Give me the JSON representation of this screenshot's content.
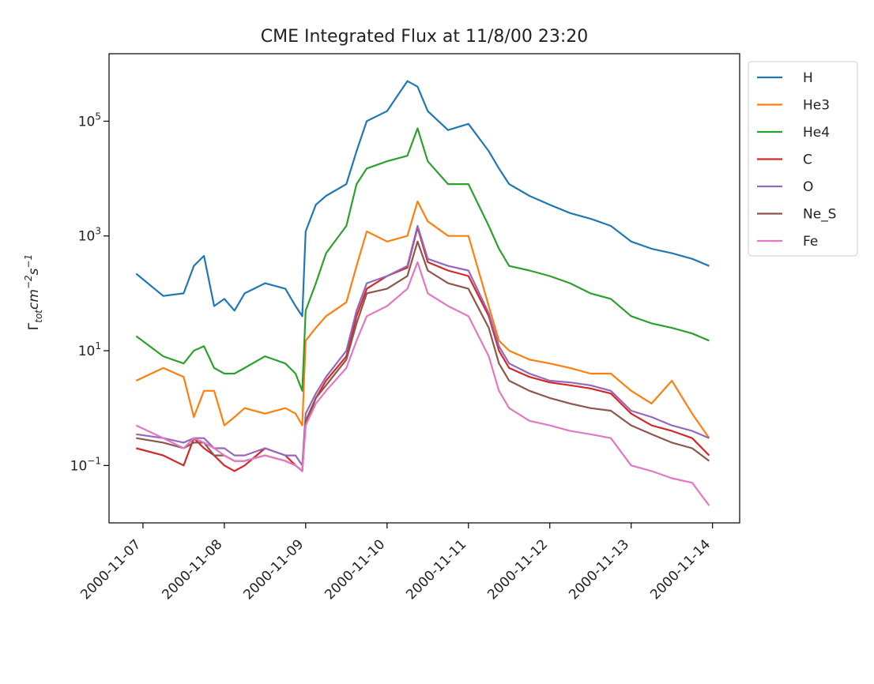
{
  "chart_data": {
    "type": "line",
    "title": "CME Integrated Flux at 11/8/00 23:20",
    "xlabel": "",
    "ylabel": "Γtot cm−2 s−1",
    "yscale": "log",
    "ylim": [
      0.01,
      1500000
    ],
    "xlim": [
      "2000-11-06 14:00",
      "2000-11-14 08:00"
    ],
    "x_ticks": [
      "2000-11-07",
      "2000-11-08",
      "2000-11-09",
      "2000-11-10",
      "2000-11-11",
      "2000-11-12",
      "2000-11-13",
      "2000-11-14"
    ],
    "y_ticks": [
      {
        "value": 0.1,
        "base": "10",
        "exp": "−1"
      },
      {
        "value": 10,
        "base": "10",
        "exp": "1"
      },
      {
        "value": 1000,
        "base": "10",
        "exp": "3"
      },
      {
        "value": 100000,
        "base": "10",
        "exp": "5"
      }
    ],
    "grid": false,
    "legend_position": "outside-top-right",
    "x": [
      "2000-11-06 22:00",
      "2000-11-07 06:00",
      "2000-11-07 12:00",
      "2000-11-07 15:00",
      "2000-11-07 18:00",
      "2000-11-07 21:00",
      "2000-11-08 00:00",
      "2000-11-08 03:00",
      "2000-11-08 06:00",
      "2000-11-08 12:00",
      "2000-11-08 18:00",
      "2000-11-08 21:00",
      "2000-11-08 23:00",
      "2000-11-09 00:00",
      "2000-11-09 03:00",
      "2000-11-09 06:00",
      "2000-11-09 12:00",
      "2000-11-09 15:00",
      "2000-11-09 18:00",
      "2000-11-10 00:00",
      "2000-11-10 06:00",
      "2000-11-10 09:00",
      "2000-11-10 12:00",
      "2000-11-10 18:00",
      "2000-11-11 00:00",
      "2000-11-11 06:00",
      "2000-11-11 09:00",
      "2000-11-11 12:00",
      "2000-11-11 18:00",
      "2000-11-12 00:00",
      "2000-11-12 06:00",
      "2000-11-12 12:00",
      "2000-11-12 18:00",
      "2000-11-13 00:00",
      "2000-11-13 06:00",
      "2000-11-13 12:00",
      "2000-11-13 18:00",
      "2000-11-13 23:00"
    ],
    "series": [
      {
        "name": "H",
        "color": "#1f77b4",
        "values": [
          220,
          90,
          100,
          300,
          450,
          60,
          80,
          50,
          100,
          150,
          120,
          60,
          40,
          1200,
          3500,
          5000,
          8000,
          30000,
          100000,
          150000,
          500000,
          400000,
          150000,
          70000,
          90000,
          30000,
          15000,
          8000,
          5000,
          3500,
          2500,
          2000,
          1500,
          800,
          600,
          500,
          400,
          300
        ]
      },
      {
        "name": "He3",
        "color": "#ff7f0e",
        "values": [
          3,
          5,
          3.5,
          0.7,
          2,
          2,
          0.5,
          0.7,
          1,
          0.8,
          1,
          0.8,
          0.5,
          15,
          25,
          40,
          70,
          300,
          1200,
          800,
          1000,
          4000,
          1800,
          1000,
          1000,
          60,
          15,
          10,
          7,
          6,
          5,
          4,
          4,
          2,
          1.2,
          3,
          0.8,
          0.3
        ]
      },
      {
        "name": "He4",
        "color": "#2ca02c",
        "values": [
          18,
          8,
          6,
          10,
          12,
          5,
          4,
          4,
          5,
          8,
          6,
          4,
          2,
          50,
          150,
          500,
          1500,
          8000,
          15000,
          20000,
          25000,
          75000,
          20000,
          8000,
          8000,
          1500,
          600,
          300,
          250,
          200,
          150,
          100,
          80,
          40,
          30,
          25,
          20,
          15
        ]
      },
      {
        "name": "C",
        "color": "#d62728",
        "values": [
          0.2,
          0.15,
          0.1,
          0.3,
          0.2,
          0.15,
          0.1,
          0.08,
          0.1,
          0.2,
          0.15,
          0.1,
          0.08,
          0.5,
          1.5,
          3,
          8,
          40,
          120,
          200,
          280,
          1400,
          350,
          250,
          200,
          40,
          10,
          5,
          3.5,
          2.8,
          2.5,
          2.2,
          1.8,
          0.8,
          0.5,
          0.4,
          0.3,
          0.15
        ]
      },
      {
        "name": "O",
        "color": "#9467bd",
        "values": [
          0.35,
          0.3,
          0.25,
          0.3,
          0.3,
          0.2,
          0.2,
          0.15,
          0.15,
          0.2,
          0.15,
          0.15,
          0.1,
          0.8,
          1.8,
          3.5,
          10,
          50,
          150,
          200,
          300,
          1500,
          400,
          300,
          250,
          45,
          12,
          6,
          4,
          3,
          2.8,
          2.5,
          2,
          0.9,
          0.7,
          0.5,
          0.4,
          0.3
        ]
      },
      {
        "name": "Ne_S",
        "color": "#8c564b",
        "values": [
          0.3,
          0.25,
          0.2,
          0.25,
          0.25,
          0.15,
          0.15,
          0.12,
          0.12,
          0.15,
          0.12,
          0.1,
          0.08,
          0.6,
          1.5,
          2.5,
          7,
          30,
          100,
          120,
          200,
          800,
          250,
          150,
          120,
          25,
          6,
          3,
          2,
          1.5,
          1.2,
          1,
          0.9,
          0.5,
          0.35,
          0.25,
          0.2,
          0.12
        ]
      },
      {
        "name": "Fe",
        "color": "#e377c2",
        "values": [
          0.5,
          0.3,
          0.2,
          0.3,
          0.25,
          0.2,
          0.15,
          0.12,
          0.12,
          0.15,
          0.12,
          0.1,
          0.08,
          0.5,
          1.2,
          2,
          5,
          15,
          40,
          60,
          120,
          350,
          100,
          60,
          40,
          8,
          2,
          1,
          0.6,
          0.5,
          0.4,
          0.35,
          0.3,
          0.1,
          0.08,
          0.06,
          0.05,
          0.02
        ]
      }
    ]
  }
}
